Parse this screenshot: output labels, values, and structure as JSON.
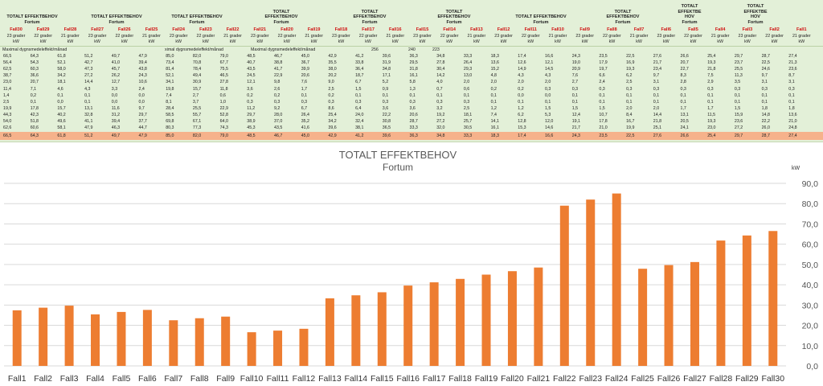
{
  "sheet": {
    "headers": [
      {
        "text": "TOTALT EFFEKTBEHOV\nFortum"
      },
      {
        "text": "TOTALT EFFEKTBEHOV\nFortum"
      },
      {
        "text": "TOTALT EFFEKTBEHOV\nFortum"
      },
      {
        "text": "TOTALT\nEFFEKTBEHOV\nFortum"
      },
      {
        "text": "TOTALT\nEFFEKTBEHOV\nFortum"
      },
      {
        "text": "TOTALT\nEFFEKTBEHOV\nFortum"
      },
      {
        "text": "TOTALT EFFEKTBEHOV\nFortum"
      },
      {
        "text": "TOTALT\nEFFEKTBEHOV\nFortum"
      },
      {
        "text": "TOTALT\nEFFEKTBE\nHOV\nFortum"
      },
      {
        "text": "TOTALT\nEFFEKTBE\nHOV\nFortum"
      }
    ],
    "fall_labels": [
      "Fall30",
      "Fall29",
      "Fall28",
      "Fall27",
      "Fall26",
      "Fall25",
      "Fall24",
      "Fall23",
      "Fall22",
      "Fall21",
      "Fall20",
      "Fall19",
      "Fall18",
      "Fall17",
      "Fall16",
      "Fall15",
      "Fall14",
      "Fall13",
      "Fall12",
      "Fall11",
      "Fall10",
      "Fall9",
      "Fall8",
      "Fall7",
      "Fall6",
      "Fall5",
      "Fall4",
      "Fall3",
      "Fall2",
      "Fall1"
    ],
    "sub_labels": [
      "23 grader\nkW",
      "22 grader\nkW",
      "21 grader\nkW",
      "23 grader\nkW",
      "22 grader\nkW",
      "21 grader\nkW",
      "23 grader\nkW",
      "22 grader\nkW",
      "21 grader\nkW",
      "23 grader\nkW",
      "22 grader\nkW",
      "21 grader\nkW",
      "23 grader\nkW",
      "22 grader\nkW",
      "21 grader\nkW",
      "23 grader\nkW",
      "22 grader\nkW",
      "21 grader\nkW",
      "23 grader\nkW",
      "22 grader\nkW",
      "21 grader\nkW",
      "23 grader\nkW",
      "22 grader\nkW",
      "21 grader\nkW",
      "23 grader\nkW",
      "22 grader\nkW",
      "21 grader\nkW",
      "23 grader\nkW",
      "22 grader\nkW",
      "21 grader\nkW"
    ],
    "row_label_1": "Maximal dygnsmedeleffekt/månad",
    "row_label_2": "ximal dygnsmedeleffekt/månad",
    "row_label_3": "Maximal dygnsmedeleffekt/månad",
    "extra_values": [
      "256",
      "240",
      "223"
    ],
    "rows": [
      [
        "66,5",
        "64,3",
        "61,8",
        "51,2",
        "49,7",
        "47,9",
        "85,0",
        "82,0",
        "79,0",
        "48,5",
        "46,7",
        "45,0",
        "42,9",
        "41,2",
        "39,6",
        "36,3",
        "34,8",
        "33,3",
        "18,3",
        "17,4",
        "16,6",
        "24,3",
        "23,5",
        "22,5",
        "27,6",
        "26,6",
        "25,4",
        "29,7",
        "28,7",
        "27,4"
      ],
      [
        "56,4",
        "54,3",
        "52,1",
        "42,7",
        "41,0",
        "39,4",
        "73,4",
        "70,8",
        "67,7",
        "40,7",
        "38,8",
        "36,7",
        "35,5",
        "33,8",
        "31,9",
        "29,5",
        "27,8",
        "26,4",
        "13,6",
        "12,6",
        "12,1",
        "19,0",
        "17,9",
        "16,9",
        "21,7",
        "20,7",
        "19,3",
        "23,7",
        "22,5",
        "21,3"
      ],
      [
        "62,5",
        "60,3",
        "58,0",
        "47,3",
        "45,7",
        "43,8",
        "81,4",
        "78,4",
        "75,5",
        "43,5",
        "41,7",
        "39,9",
        "38,0",
        "36,4",
        "34,8",
        "31,8",
        "30,4",
        "29,3",
        "15,2",
        "14,9",
        "14,5",
        "20,9",
        "19,7",
        "19,3",
        "23,4",
        "22,7",
        "21,8",
        "25,5",
        "24,6",
        "23,6"
      ],
      [
        "38,7",
        "36,6",
        "34,2",
        "27,2",
        "26,2",
        "24,3",
        "52,1",
        "49,4",
        "46,5",
        "24,5",
        "22,9",
        "20,6",
        "20,2",
        "18,7",
        "17,1",
        "16,1",
        "14,2",
        "13,0",
        "4,8",
        "4,3",
        "4,3",
        "7,6",
        "6,6",
        "6,2",
        "9,7",
        "8,3",
        "7,5",
        "11,3",
        "9,7",
        "8,7"
      ],
      [
        "23,0",
        "20,7",
        "18,1",
        "14,4",
        "12,7",
        "10,6",
        "34,1",
        "30,9",
        "27,8",
        "12,1",
        "9,8",
        "7,6",
        "9,0",
        "6,7",
        "5,2",
        "5,8",
        "4,0",
        "2,0",
        "2,0",
        "2,0",
        "2,0",
        "2,7",
        "2,4",
        "2,5",
        "3,1",
        "2,8",
        "2,9",
        "3,5",
        "3,1",
        "3,1"
      ],
      [
        "11,4",
        "7,1",
        "4,6",
        "4,3",
        "3,3",
        "2,4",
        "19,8",
        "15,7",
        "11,8",
        "3,6",
        "2,6",
        "1,7",
        "2,5",
        "1,5",
        "0,9",
        "1,3",
        "0,7",
        "0,6",
        "0,2",
        "0,2",
        "0,3",
        "0,3",
        "0,3",
        "0,3",
        "0,3",
        "0,3",
        "0,3",
        "0,3",
        "0,3",
        "0,3"
      ],
      [
        "1,4",
        "0,2",
        "0,1",
        "0,1",
        "0,0",
        "0,0",
        "7,4",
        "2,7",
        "0,6",
        "0,2",
        "0,2",
        "0,1",
        "0,2",
        "0,1",
        "0,1",
        "0,1",
        "0,1",
        "0,1",
        "0,1",
        "0,0",
        "0,0",
        "0,1",
        "0,1",
        "0,1",
        "0,1",
        "0,1",
        "0,1",
        "0,1",
        "0,1",
        "0,1"
      ],
      [
        "2,5",
        "0,1",
        "0,0",
        "0,1",
        "0,0",
        "0,0",
        "8,1",
        "3,7",
        "1,0",
        "0,3",
        "0,3",
        "0,3",
        "0,3",
        "0,3",
        "0,3",
        "0,3",
        "0,3",
        "0,3",
        "0,1",
        "0,1",
        "0,1",
        "0,1",
        "0,1",
        "0,1",
        "0,1",
        "0,1",
        "0,1",
        "0,1",
        "0,1",
        "0,1"
      ],
      [
        "19,9",
        "17,8",
        "15,7",
        "13,1",
        "11,6",
        "9,7",
        "28,4",
        "25,5",
        "22,9",
        "11,2",
        "9,2",
        "6,7",
        "8,6",
        "6,4",
        "3,6",
        "3,6",
        "3,2",
        "2,5",
        "1,2",
        "1,2",
        "1,5",
        "1,5",
        "1,5",
        "2,0",
        "2,0",
        "1,7",
        "1,7",
        "1,5",
        "1,8",
        "1,8"
      ],
      [
        "44,3",
        "42,3",
        "40,2",
        "32,8",
        "31,2",
        "29,7",
        "58,5",
        "55,7",
        "52,8",
        "29,7",
        "28,0",
        "26,4",
        "25,4",
        "24,0",
        "22,2",
        "20,6",
        "19,2",
        "18,1",
        "7,4",
        "6,2",
        "5,3",
        "12,4",
        "10,7",
        "8,4",
        "14,4",
        "13,1",
        "11,5",
        "15,9",
        "14,8",
        "13,6"
      ],
      [
        "54,0",
        "51,8",
        "49,6",
        "41,1",
        "39,4",
        "37,7",
        "69,8",
        "67,1",
        "64,0",
        "38,9",
        "37,0",
        "35,2",
        "34,2",
        "32,4",
        "30,8",
        "28,7",
        "27,2",
        "25,7",
        "14,1",
        "12,8",
        "12,0",
        "19,1",
        "17,8",
        "16,7",
        "21,8",
        "20,5",
        "19,3",
        "23,6",
        "22,2",
        "21,0"
      ],
      [
        "62,6",
        "60,6",
        "58,1",
        "47,9",
        "46,3",
        "44,7",
        "80,3",
        "77,3",
        "74,3",
        "45,3",
        "43,5",
        "41,6",
        "39,6",
        "38,1",
        "36,5",
        "33,3",
        "32,0",
        "30,5",
        "16,1",
        "15,3",
        "14,6",
        "21,7",
        "21,0",
        "19,9",
        "25,1",
        "24,1",
        "23,0",
        "27,2",
        "26,0",
        "24,8"
      ]
    ],
    "max_row": [
      "66,5",
      "64,3",
      "61,8",
      "51,2",
      "49,7",
      "47,9",
      "85,0",
      "82,0",
      "79,0",
      "48,5",
      "46,7",
      "45,0",
      "42,9",
      "41,2",
      "39,6",
      "36,3",
      "34,8",
      "33,3",
      "18,3",
      "17,4",
      "16,6",
      "24,3",
      "23,5",
      "22,5",
      "27,6",
      "26,6",
      "25,4",
      "29,7",
      "28,7",
      "27,4"
    ]
  },
  "chart_data": {
    "type": "bar",
    "title": "TOTALT EFFEKTBEHOV",
    "subtitle": "Fortum",
    "ylabel": "kW",
    "ylim": [
      0,
      90
    ],
    "yticks": [
      "0,0",
      "10,0",
      "20,0",
      "30,0",
      "40,0",
      "50,0",
      "60,0",
      "70,0",
      "80,0",
      "90,0"
    ],
    "categories": [
      "Fall1",
      "Fall2",
      "Fall3",
      "Fall4",
      "Fall5",
      "Fall6",
      "Fall7",
      "Fall8",
      "Fall9",
      "Fall10",
      "Fall11",
      "Fall12",
      "Fall13",
      "Fall14",
      "Fall15",
      "Fall16",
      "Fall17",
      "Fall18",
      "Fall19",
      "Fall20",
      "Fall21",
      "Fall22",
      "Fall23",
      "Fall24",
      "Fall25",
      "Fall26",
      "Fall27",
      "Fall28",
      "Fall29",
      "Fall30"
    ],
    "values": [
      27.4,
      28.7,
      29.7,
      25.4,
      26.6,
      27.6,
      22.5,
      23.5,
      24.3,
      16.6,
      17.4,
      18.3,
      33.3,
      34.8,
      36.3,
      39.6,
      41.2,
      42.9,
      45.0,
      46.7,
      48.5,
      79.0,
      82.0,
      85.0,
      47.9,
      49.7,
      51.2,
      61.8,
      64.3,
      66.5
    ],
    "bar_color": "#ed7d31",
    "grid": true
  }
}
